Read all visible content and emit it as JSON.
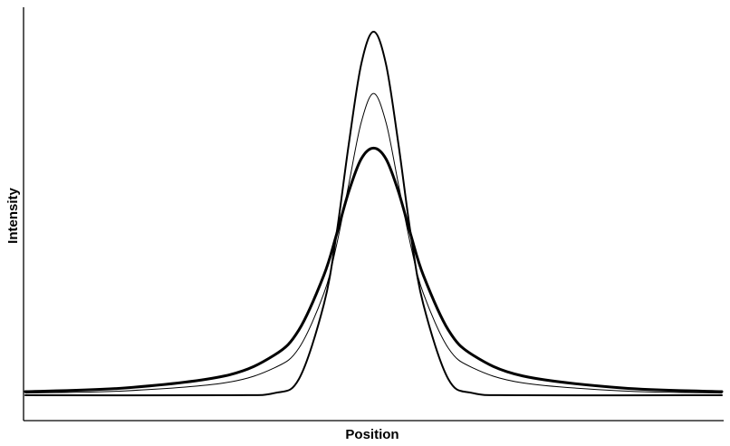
{
  "chart_data": {
    "type": "line",
    "title": "",
    "xlabel": "Position",
    "ylabel": "Intensity",
    "xlim": [
      -7,
      7
    ],
    "ylim": [
      0,
      1.0
    ],
    "grid": false,
    "legend": "none",
    "line_color": "#000000",
    "series": [
      {
        "profile": "gaussian",
        "stroke": "medium",
        "x": [
          -7,
          -3,
          -2,
          -1.5,
          -1,
          -0.75,
          -0.5,
          -0.25,
          0,
          0.25,
          0.5,
          0.75,
          1,
          1.5,
          2,
          3,
          7
        ],
        "values": [
          0.0,
          0.0,
          0.0058,
          0.045,
          0.25,
          0.44,
          0.69,
          0.91,
          1.0,
          0.91,
          0.69,
          0.44,
          0.25,
          0.045,
          0.0058,
          0.0,
          0.0
        ]
      },
      {
        "profile": "pseudo-voigt",
        "stroke": "thin",
        "x": [
          -7,
          -5,
          -3,
          -2,
          -1.5,
          -1,
          -0.75,
          -0.5,
          -0.25,
          0,
          0.25,
          0.5,
          0.75,
          1,
          1.5,
          2,
          3,
          5,
          7
        ],
        "values": [
          0.006,
          0.012,
          0.034,
          0.075,
          0.13,
          0.28,
          0.41,
          0.58,
          0.75,
          0.83,
          0.75,
          0.58,
          0.41,
          0.28,
          0.13,
          0.075,
          0.034,
          0.012,
          0.006
        ]
      },
      {
        "profile": "lorentzian",
        "stroke": "thick",
        "x": [
          -7,
          -5,
          -3,
          -2,
          -1.5,
          -1,
          -0.75,
          -0.5,
          -0.25,
          0,
          0.25,
          0.5,
          0.75,
          1,
          1.5,
          2,
          3,
          5,
          7
        ],
        "values": [
          0.01,
          0.02,
          0.053,
          0.11,
          0.18,
          0.33,
          0.44,
          0.56,
          0.65,
          0.68,
          0.65,
          0.56,
          0.44,
          0.33,
          0.18,
          0.11,
          0.053,
          0.02,
          0.01
        ]
      }
    ]
  }
}
